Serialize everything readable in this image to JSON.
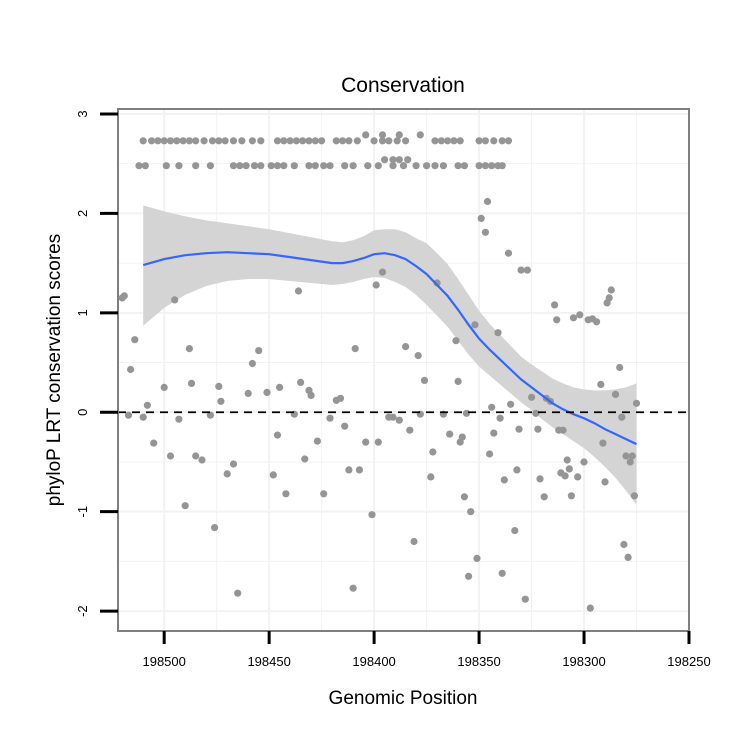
{
  "chart_data": {
    "type": "scatter",
    "title": "Conservation",
    "xlabel": "Genomic Position",
    "ylabel": "phyloP LRT conservation scores",
    "x_reversed": true,
    "xlim": [
      198522,
      198250
    ],
    "ylim": [
      -2.2,
      3.05
    ],
    "x_ticks": [
      198500,
      198450,
      198400,
      198350,
      198300,
      198250
    ],
    "x_tick_labels": [
      "198500",
      "198450",
      "198400",
      "198350",
      "198300",
      "198250"
    ],
    "y_ticks": [
      -2,
      -1,
      0,
      1,
      2,
      3
    ],
    "y_tick_labels": [
      "-2",
      "-1",
      "0",
      "1",
      "2",
      "3"
    ],
    "reference_line": {
      "y": 0,
      "style": "dashed"
    },
    "colors": {
      "points": "#959595",
      "smooth": "#3366ff",
      "band": "#d4d4d4",
      "panel_border": "#7f7f7f",
      "grid": "#f2f2f2"
    },
    "series": [
      {
        "name": "phyloP score",
        "kind": "points",
        "points": [
          [
            198510,
            2.73
          ],
          [
            198506,
            2.73
          ],
          [
            198503,
            2.73
          ],
          [
            198500,
            2.73
          ],
          [
            198497,
            2.73
          ],
          [
            198494,
            2.73
          ],
          [
            198491,
            2.73
          ],
          [
            198488,
            2.73
          ],
          [
            198485,
            2.73
          ],
          [
            198481,
            2.73
          ],
          [
            198477,
            2.73
          ],
          [
            198474,
            2.73
          ],
          [
            198471,
            2.73
          ],
          [
            198467,
            2.73
          ],
          [
            198463,
            2.73
          ],
          [
            198458,
            2.73
          ],
          [
            198454,
            2.73
          ],
          [
            198446,
            2.73
          ],
          [
            198443,
            2.73
          ],
          [
            198440,
            2.73
          ],
          [
            198437,
            2.73
          ],
          [
            198434,
            2.73
          ],
          [
            198431,
            2.73
          ],
          [
            198428,
            2.73
          ],
          [
            198425,
            2.73
          ],
          [
            198418,
            2.73
          ],
          [
            198415,
            2.73
          ],
          [
            198412,
            2.73
          ],
          [
            198408,
            2.73
          ],
          [
            198400,
            2.73
          ],
          [
            198396,
            2.73
          ],
          [
            198393,
            2.73
          ],
          [
            198389,
            2.73
          ],
          [
            198385,
            2.73
          ],
          [
            198371,
            2.73
          ],
          [
            198368,
            2.73
          ],
          [
            198365,
            2.73
          ],
          [
            198362,
            2.73
          ],
          [
            198359,
            2.73
          ],
          [
            198350,
            2.73
          ],
          [
            198347,
            2.73
          ],
          [
            198343,
            2.73
          ],
          [
            198339,
            2.73
          ],
          [
            198336,
            2.73
          ],
          [
            198404,
            2.79
          ],
          [
            198396,
            2.79
          ],
          [
            198388,
            2.79
          ],
          [
            198378,
            2.79
          ],
          [
            198512,
            2.48
          ],
          [
            198509,
            2.48
          ],
          [
            198499,
            2.48
          ],
          [
            198493,
            2.48
          ],
          [
            198485,
            2.48
          ],
          [
            198478,
            2.48
          ],
          [
            198467,
            2.48
          ],
          [
            198464,
            2.48
          ],
          [
            198461,
            2.48
          ],
          [
            198457,
            2.48
          ],
          [
            198454,
            2.48
          ],
          [
            198449,
            2.48
          ],
          [
            198446,
            2.48
          ],
          [
            198443,
            2.48
          ],
          [
            198438,
            2.48
          ],
          [
            198431,
            2.48
          ],
          [
            198428,
            2.48
          ],
          [
            198424,
            2.48
          ],
          [
            198421,
            2.48
          ],
          [
            198414,
            2.48
          ],
          [
            198410,
            2.48
          ],
          [
            198403,
            2.48
          ],
          [
            198398,
            2.48
          ],
          [
            198391,
            2.48
          ],
          [
            198386,
            2.48
          ],
          [
            198380,
            2.48
          ],
          [
            198375,
            2.48
          ],
          [
            198371,
            2.48
          ],
          [
            198367,
            2.48
          ],
          [
            198360,
            2.48
          ],
          [
            198357,
            2.48
          ],
          [
            198350,
            2.48
          ],
          [
            198347,
            2.48
          ],
          [
            198344,
            2.48
          ],
          [
            198341,
            2.48
          ],
          [
            198339,
            2.48
          ],
          [
            198395,
            2.54
          ],
          [
            198391,
            2.54
          ],
          [
            198388,
            2.54
          ],
          [
            198384,
            2.54
          ],
          [
            198520,
            1.15
          ],
          [
            198519,
            1.17
          ],
          [
            198514,
            0.73
          ],
          [
            198516,
            0.43
          ],
          [
            198508,
            0.07
          ],
          [
            198510,
            -0.05
          ],
          [
            198517,
            -0.03
          ],
          [
            198505,
            -0.31
          ],
          [
            198500,
            0.25
          ],
          [
            198497,
            -0.44
          ],
          [
            198495,
            1.13
          ],
          [
            198493,
            -0.07
          ],
          [
            198490,
            -0.94
          ],
          [
            198488,
            0.64
          ],
          [
            198487,
            0.29
          ],
          [
            198485,
            -0.44
          ],
          [
            198482,
            -0.48
          ],
          [
            198478,
            -0.03
          ],
          [
            198476,
            -1.16
          ],
          [
            198474,
            0.26
          ],
          [
            198473,
            0.11
          ],
          [
            198470,
            -0.62
          ],
          [
            198467,
            -0.52
          ],
          [
            198465,
            -1.82
          ],
          [
            198460,
            0.19
          ],
          [
            198458,
            0.49
          ],
          [
            198455,
            0.62
          ],
          [
            198451,
            0.2
          ],
          [
            198448,
            -0.63
          ],
          [
            198446,
            -0.23
          ],
          [
            198445,
            0.25
          ],
          [
            198442,
            -0.82
          ],
          [
            198438,
            -0.02
          ],
          [
            198436,
            1.22
          ],
          [
            198435,
            0.3
          ],
          [
            198433,
            -0.47
          ],
          [
            198431,
            0.22
          ],
          [
            198430,
            0.17
          ],
          [
            198427,
            -0.29
          ],
          [
            198424,
            -0.82
          ],
          [
            198421,
            -0.06
          ],
          [
            198418,
            0.12
          ],
          [
            198416,
            0.14
          ],
          [
            198414,
            -0.14
          ],
          [
            198412,
            -0.58
          ],
          [
            198410,
            -1.77
          ],
          [
            198409,
            0.64
          ],
          [
            198407,
            -0.58
          ],
          [
            198404,
            -0.3
          ],
          [
            198401,
            -1.03
          ],
          [
            198399,
            1.28
          ],
          [
            198398,
            -0.3
          ],
          [
            198396,
            1.41
          ],
          [
            198393,
            -0.05
          ],
          [
            198391,
            -0.05
          ],
          [
            198388,
            -0.08
          ],
          [
            198385,
            0.66
          ],
          [
            198383,
            -0.18
          ],
          [
            198381,
            -1.3
          ],
          [
            198379,
            0.57
          ],
          [
            198378,
            -0.02
          ],
          [
            198376,
            0.32
          ],
          [
            198373,
            -0.65
          ],
          [
            198372,
            -0.4
          ],
          [
            198370,
            1.3
          ],
          [
            198367,
            -0.02
          ],
          [
            198364,
            -0.22
          ],
          [
            198361,
            0.72
          ],
          [
            198360,
            0.31
          ],
          [
            198359,
            -0.3
          ],
          [
            198358,
            -0.25
          ],
          [
            198357,
            -0.85
          ],
          [
            198356,
            -0.01
          ],
          [
            198355,
            -1.65
          ],
          [
            198354,
            -1.0
          ],
          [
            198352,
            0.88
          ],
          [
            198351,
            -1.47
          ],
          [
            198349,
            1.95
          ],
          [
            198347,
            1.81
          ],
          [
            198346,
            2.12
          ],
          [
            198345,
            -0.42
          ],
          [
            198344,
            0.05
          ],
          [
            198343,
            -0.21
          ],
          [
            198341,
            0.8
          ],
          [
            198340,
            -0.06
          ],
          [
            198339,
            -1.62
          ],
          [
            198338,
            -0.68
          ],
          [
            198336,
            1.6
          ],
          [
            198335,
            0.08
          ],
          [
            198333,
            -1.19
          ],
          [
            198332,
            -0.58
          ],
          [
            198331,
            -0.17
          ],
          [
            198330,
            1.43
          ],
          [
            198328,
            -1.88
          ],
          [
            198327,
            1.43
          ],
          [
            198325,
            0.15
          ],
          [
            198323,
            -0.01
          ],
          [
            198322,
            -0.17
          ],
          [
            198321,
            -0.67
          ],
          [
            198319,
            -0.85
          ],
          [
            198318,
            0.14
          ],
          [
            198316,
            0.11
          ],
          [
            198314,
            1.08
          ],
          [
            198313,
            0.93
          ],
          [
            198312,
            -0.18
          ],
          [
            198311,
            -0.61
          ],
          [
            198310,
            -0.18
          ],
          [
            198309,
            -0.64
          ],
          [
            198308,
            -0.48
          ],
          [
            198307,
            -0.57
          ],
          [
            198306,
            -0.84
          ],
          [
            198305,
            0.95
          ],
          [
            198303,
            -0.65
          ],
          [
            198302,
            0.98
          ],
          [
            198300,
            -0.5
          ],
          [
            198298,
            0.93
          ],
          [
            198297,
            -1.97
          ],
          [
            198296,
            0.94
          ],
          [
            198294,
            0.91
          ],
          [
            198292,
            0.28
          ],
          [
            198291,
            -0.31
          ],
          [
            198290,
            -0.7
          ],
          [
            198289,
            1.1
          ],
          [
            198288,
            1.15
          ],
          [
            198287,
            1.23
          ],
          [
            198285,
            0.18
          ],
          [
            198283,
            0.45
          ],
          [
            198282,
            -0.05
          ],
          [
            198281,
            -1.33
          ],
          [
            198280,
            -0.44
          ],
          [
            198279,
            -1.46
          ],
          [
            198278,
            -0.5
          ],
          [
            198277,
            -0.44
          ],
          [
            198276,
            -0.84
          ],
          [
            198275,
            0.09
          ]
        ]
      },
      {
        "name": "smooth fit",
        "kind": "line",
        "x": [
          198510,
          198500,
          198490,
          198480,
          198470,
          198460,
          198450,
          198440,
          198430,
          198420,
          198415,
          198410,
          198405,
          198400,
          198395,
          198390,
          198385,
          198380,
          198375,
          198370,
          198365,
          198360,
          198355,
          198350,
          198345,
          198340,
          198335,
          198330,
          198325,
          198320,
          198315,
          198310,
          198305,
          198300,
          198295,
          198290,
          198285,
          198280,
          198275
        ],
        "y": [
          1.48,
          1.54,
          1.58,
          1.6,
          1.61,
          1.6,
          1.59,
          1.56,
          1.53,
          1.5,
          1.5,
          1.52,
          1.55,
          1.59,
          1.6,
          1.58,
          1.54,
          1.47,
          1.39,
          1.28,
          1.17,
          1.03,
          0.88,
          0.74,
          0.63,
          0.53,
          0.43,
          0.33,
          0.25,
          0.17,
          0.09,
          0.03,
          -0.02,
          -0.06,
          -0.11,
          -0.17,
          -0.22,
          -0.27,
          -0.32
        ],
        "ci_lower": [
          0.87,
          1.05,
          1.18,
          1.27,
          1.32,
          1.34,
          1.34,
          1.32,
          1.3,
          1.28,
          1.29,
          1.31,
          1.34,
          1.36,
          1.35,
          1.31,
          1.26,
          1.18,
          1.08,
          0.97,
          0.86,
          0.72,
          0.58,
          0.46,
          0.37,
          0.28,
          0.19,
          0.1,
          0.02,
          -0.07,
          -0.15,
          -0.22,
          -0.29,
          -0.36,
          -0.45,
          -0.55,
          -0.66,
          -0.79,
          -0.93
        ],
        "ci_upper": [
          2.08,
          2.02,
          1.97,
          1.93,
          1.9,
          1.87,
          1.84,
          1.8,
          1.76,
          1.72,
          1.71,
          1.73,
          1.77,
          1.83,
          1.84,
          1.84,
          1.81,
          1.75,
          1.7,
          1.6,
          1.49,
          1.34,
          1.18,
          1.02,
          0.89,
          0.78,
          0.67,
          0.56,
          0.48,
          0.41,
          0.34,
          0.29,
          0.25,
          0.23,
          0.22,
          0.22,
          0.23,
          0.25,
          0.29
        ]
      }
    ]
  }
}
